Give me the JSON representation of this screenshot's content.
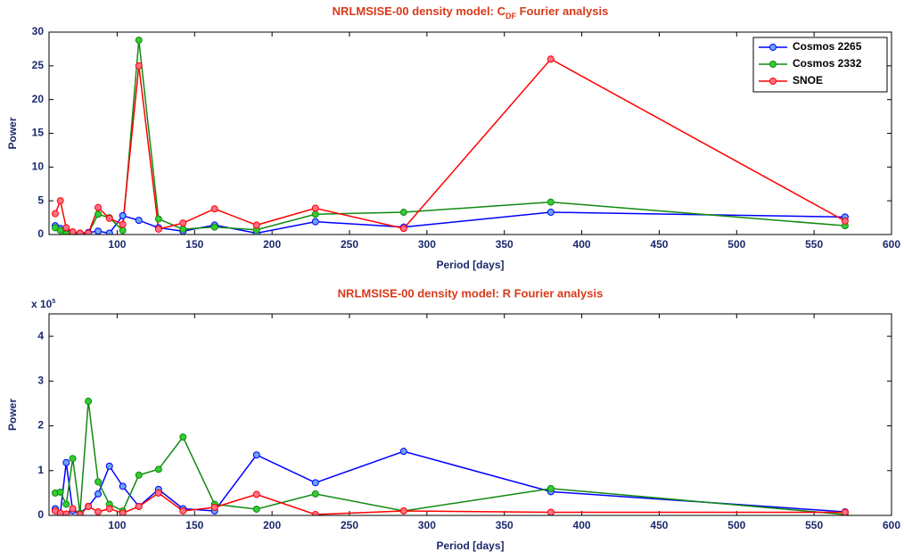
{
  "chart_data": [
    {
      "type": "line",
      "title": [
        "NRLMSISE-00 density model: C",
        "DF",
        " Fourier analysis"
      ],
      "x_label": "Period [days]",
      "y_label": "Power",
      "x": [
        60,
        63.3,
        67.1,
        71.3,
        76,
        81.4,
        87.7,
        95,
        103.6,
        114,
        126.7,
        142.5,
        162.9,
        190,
        228,
        285,
        380,
        570
      ],
      "xlim": [
        56,
        600
      ],
      "xticks": [
        100,
        150,
        200,
        250,
        300,
        350,
        400,
        450,
        500,
        550,
        600
      ],
      "ylim": [
        0,
        30
      ],
      "yticks": [
        0,
        5,
        10,
        15,
        20,
        25,
        30
      ],
      "grid": false,
      "legend": "upper right",
      "series": [
        {
          "name": "Cosmos 2265",
          "color": "#0000ff",
          "marker_color": "#6aa6f0",
          "values": [
            1.3,
            0.9,
            0.3,
            0.3,
            0.2,
            0.3,
            0.5,
            0.2,
            2.8,
            2.1,
            1.0,
            0.5,
            1.4,
            0.2,
            1.9,
            1.1,
            3.3,
            2.6
          ]
        },
        {
          "name": "Cosmos 2332",
          "color": "#108a10",
          "marker_color": "#33cc33",
          "values": [
            1.0,
            0.6,
            0.1,
            0.2,
            0.1,
            0.2,
            3.0,
            2.5,
            0.6,
            28.8,
            2.3,
            0.8,
            1.1,
            0.7,
            3.0,
            3.3,
            4.8,
            1.3
          ]
        },
        {
          "name": "SNOE",
          "color": "#ff0000",
          "marker_color": "#ff7088",
          "values": [
            3.1,
            5.0,
            1.0,
            0.4,
            0.2,
            0.2,
            4.0,
            2.4,
            1.5,
            25,
            0.8,
            1.7,
            3.8,
            1.4,
            3.9,
            0.9,
            26,
            2.0
          ]
        }
      ]
    },
    {
      "type": "line",
      "title": "NRLMSISE-00 density model: R Fourier analysis",
      "x_label": "Period [days]",
      "y_label": "Power",
      "y_multiplier": [
        "x 10",
        "5"
      ],
      "x": [
        60,
        63.3,
        67.1,
        71.3,
        76,
        81.4,
        87.7,
        95,
        103.6,
        114,
        126.7,
        142.5,
        162.9,
        190,
        228,
        285,
        380,
        570
      ],
      "xlim": [
        56,
        600
      ],
      "xticks": [
        100,
        150,
        200,
        250,
        300,
        350,
        400,
        450,
        500,
        550,
        600
      ],
      "ylim": [
        0,
        4.5
      ],
      "yticks": [
        0,
        1,
        2,
        3,
        4
      ],
      "grid": false,
      "series": [
        {
          "name": "Cosmos 2265",
          "color": "#0000ff",
          "marker_color": "#6aa6f0",
          "values": [
            0.15,
            0.05,
            1.18,
            0.1,
            0.05,
            0.2,
            0.48,
            1.1,
            0.65,
            0.2,
            0.58,
            0.15,
            0.1,
            1.35,
            0.73,
            1.43,
            0.53,
            0.08
          ]
        },
        {
          "name": "Cosmos 2332",
          "color": "#108a10",
          "marker_color": "#33cc33",
          "values": [
            0.5,
            0.52,
            0.25,
            1.27,
            0.05,
            2.55,
            0.75,
            0.25,
            0.1,
            0.9,
            1.03,
            1.75,
            0.25,
            0.14,
            0.48,
            0.1,
            0.6,
            0.02
          ]
        },
        {
          "name": "SNOE",
          "color": "#ff0000",
          "marker_color": "#ff7088",
          "values": [
            0.1,
            0.05,
            0.03,
            0.15,
            0.02,
            0.2,
            0.08,
            0.15,
            0.05,
            0.2,
            0.5,
            0.1,
            0.18,
            0.47,
            0.02,
            0.1,
            0.07,
            0.07
          ]
        }
      ]
    }
  ]
}
